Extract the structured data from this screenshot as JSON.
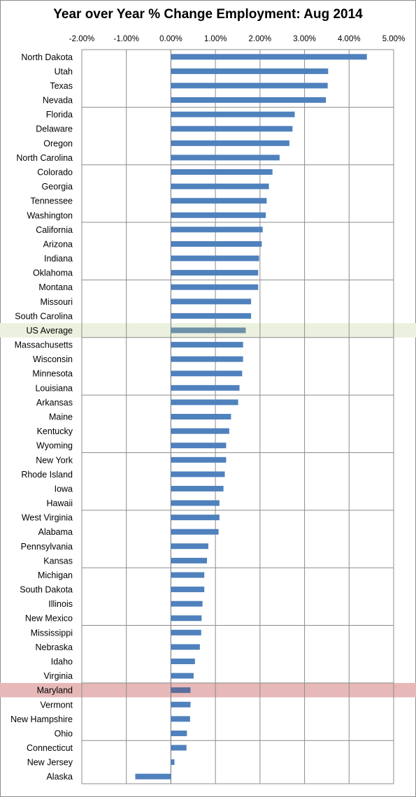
{
  "chart_data": {
    "type": "bar",
    "orientation": "horizontal",
    "title": "Year over Year % Change Employment: Aug 2014",
    "xlabel": "",
    "ylabel": "",
    "xlim": [
      -0.02,
      0.05
    ],
    "x_ticks": [
      "-2.00%",
      "-1.00%",
      "0.00%",
      "1.00%",
      "2.00%",
      "3.00%",
      "4.00%",
      "5.00%"
    ],
    "grid": "vertical major gridlines; horizontal band lines every 4 categories",
    "legend": "none",
    "bar_color": "#4f81bd",
    "highlights": [
      {
        "category": "US Average",
        "band_color": "#ebf1de",
        "bar_color": "#6e91a8"
      },
      {
        "category": "Maryland",
        "band_color": "#e6b8b7",
        "bar_color": "#5b6e9c"
      }
    ],
    "categories": [
      "North Dakota",
      "Utah",
      "Texas",
      "Nevada",
      "Florida",
      "Delaware",
      "Oregon",
      "North Carolina",
      "Colorado",
      "Georgia",
      "Tennessee",
      "Washington",
      "California",
      "Arizona",
      "Indiana",
      "Oklahoma",
      "Montana",
      "Missouri",
      "South Carolina",
      "US Average",
      "Massachusetts",
      "Wisconsin",
      "Minnesota",
      "Louisiana",
      "Arkansas",
      "Maine",
      "Kentucky",
      "Wyoming",
      "New York",
      "Rhode Island",
      "Iowa",
      "Hawaii",
      "West Virginia",
      "Alabama",
      "Pennsylvania",
      "Kansas",
      "Michigan",
      "South Dakota",
      "Illinois",
      "New Mexico",
      "Mississippi",
      "Nebraska",
      "Idaho",
      "Virginia",
      "Maryland",
      "Vermont",
      "New Hampshire",
      "Ohio",
      "Connecticut",
      "New Jersey",
      "Alaska"
    ],
    "values": [
      0.044,
      0.0353,
      0.0352,
      0.0348,
      0.0278,
      0.0273,
      0.0266,
      0.0244,
      0.0228,
      0.022,
      0.0215,
      0.0213,
      0.0206,
      0.0204,
      0.0198,
      0.0196,
      0.0196,
      0.018,
      0.018,
      0.0168,
      0.0162,
      0.0162,
      0.016,
      0.0154,
      0.0151,
      0.0135,
      0.0131,
      0.0124,
      0.0124,
      0.0121,
      0.0118,
      0.0109,
      0.0109,
      0.0107,
      0.0084,
      0.0081,
      0.0075,
      0.0075,
      0.0071,
      0.0069,
      0.0068,
      0.0065,
      0.0054,
      0.0051,
      0.0044,
      0.0044,
      0.0043,
      0.0036,
      0.0035,
      0.0008,
      -0.008
    ]
  }
}
